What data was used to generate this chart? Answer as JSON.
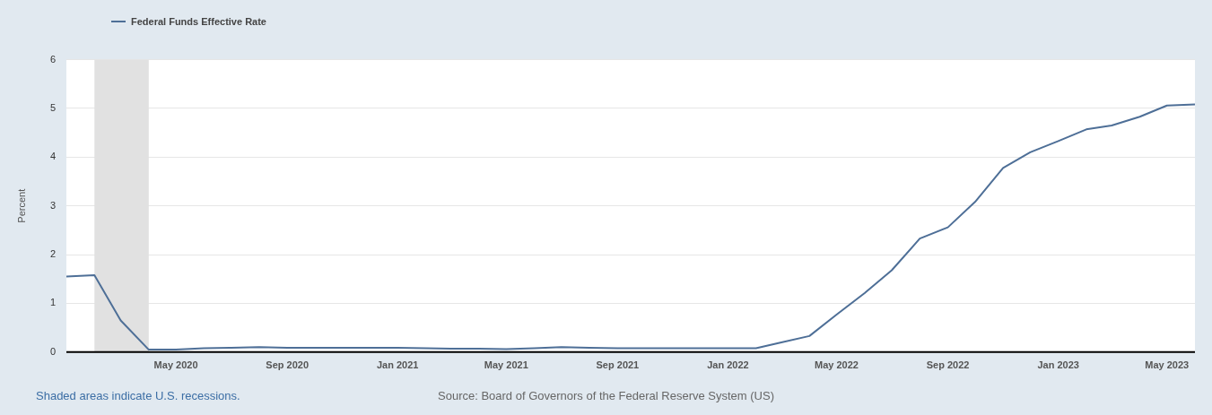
{
  "chart_data": {
    "type": "line",
    "ylabel": "Percent",
    "x": [
      "2020-01",
      "2020-02",
      "2020-03",
      "2020-04",
      "2020-05",
      "2020-06",
      "2020-07",
      "2020-08",
      "2020-09",
      "2020-10",
      "2020-11",
      "2020-12",
      "2021-01",
      "2021-02",
      "2021-03",
      "2021-04",
      "2021-05",
      "2021-06",
      "2021-07",
      "2021-08",
      "2021-09",
      "2021-10",
      "2021-11",
      "2021-12",
      "2022-01",
      "2022-02",
      "2022-03",
      "2022-04",
      "2022-05",
      "2022-06",
      "2022-07",
      "2022-08",
      "2022-09",
      "2022-10",
      "2022-11",
      "2022-12",
      "2023-01",
      "2023-02",
      "2023-03",
      "2023-04",
      "2023-05",
      "2023-06"
    ],
    "series": [
      {
        "name": "Federal Funds Effective Rate",
        "color": "#4e6f97",
        "values": [
          1.55,
          1.58,
          0.65,
          0.05,
          0.05,
          0.08,
          0.09,
          0.1,
          0.09,
          0.09,
          0.09,
          0.09,
          0.09,
          0.08,
          0.07,
          0.07,
          0.06,
          0.08,
          0.1,
          0.09,
          0.08,
          0.08,
          0.08,
          0.08,
          0.08,
          0.08,
          0.2,
          0.33,
          0.77,
          1.21,
          1.68,
          2.33,
          2.56,
          3.08,
          3.78,
          4.1,
          4.33,
          4.57,
          4.65,
          4.83,
          5.06,
          5.08
        ]
      }
    ],
    "xlim": [
      "2020-01",
      "2023-06"
    ],
    "xticks": [
      {
        "value": "2020-05",
        "label": "May 2020"
      },
      {
        "value": "2020-09",
        "label": "Sep 2020"
      },
      {
        "value": "2021-01",
        "label": "Jan 2021"
      },
      {
        "value": "2021-05",
        "label": "May 2021"
      },
      {
        "value": "2021-09",
        "label": "Sep 2021"
      },
      {
        "value": "2022-01",
        "label": "Jan 2022"
      },
      {
        "value": "2022-05",
        "label": "May 2022"
      },
      {
        "value": "2022-09",
        "label": "Sep 2022"
      },
      {
        "value": "2023-01",
        "label": "Jan 2023"
      },
      {
        "value": "2023-05",
        "label": "May 2023"
      }
    ],
    "ylim": [
      0,
      6
    ],
    "yticks": [
      0,
      1,
      2,
      3,
      4,
      5,
      6
    ],
    "bands": [
      {
        "axis": "x",
        "from": "2020-02",
        "to": "2020-04",
        "color": "#e1e1e1"
      }
    ],
    "grid": "y",
    "legend": "top left",
    "marker": "none",
    "line_style": "solid",
    "annotations": [
      "Shaded areas indicate U.S. recessions.",
      "Source: Board of Governors of the Federal Reserve System (US)"
    ]
  }
}
